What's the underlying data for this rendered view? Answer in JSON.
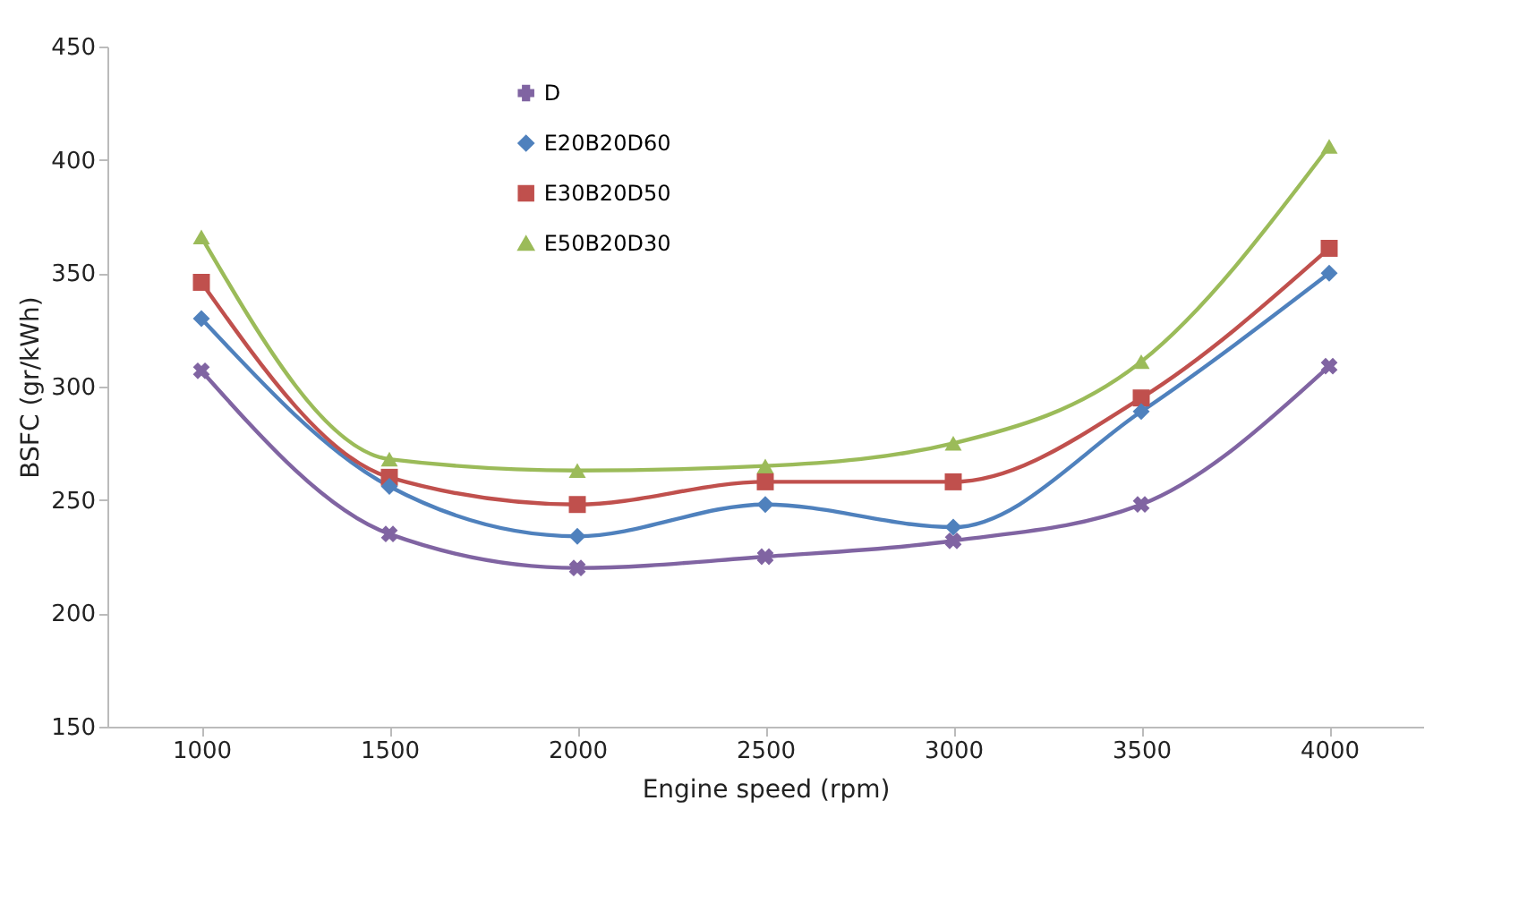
{
  "chart_data": {
    "type": "line",
    "xlabel": "Engine speed (rpm)",
    "ylabel": "BSFC (gr/kWh)",
    "categories": [
      "1000",
      "1500",
      "2000",
      "2500",
      "3000",
      "3500",
      "4000"
    ],
    "ylim": [
      150,
      450
    ],
    "yticks": [
      150,
      200,
      250,
      300,
      350,
      400,
      450
    ],
    "grid": false,
    "legend": "top",
    "line_style": "solid",
    "series": [
      {
        "name": "D",
        "color": "#8064a2",
        "marker": "cross",
        "values": [
          307,
          235,
          220,
          225,
          232,
          248,
          309
        ]
      },
      {
        "name": "E20B20D60",
        "color": "#4f81bd",
        "marker": "diamond",
        "values": [
          330,
          256,
          234,
          248,
          238,
          289,
          350
        ]
      },
      {
        "name": "E30B20D50",
        "color": "#c0504d",
        "marker": "square",
        "values": [
          346,
          260,
          248,
          258,
          258,
          295,
          361
        ]
      },
      {
        "name": "E50B20D30",
        "color": "#9bbb59",
        "marker": "triangle",
        "values": [
          366,
          268,
          263,
          265,
          275,
          311,
          406
        ]
      }
    ]
  }
}
